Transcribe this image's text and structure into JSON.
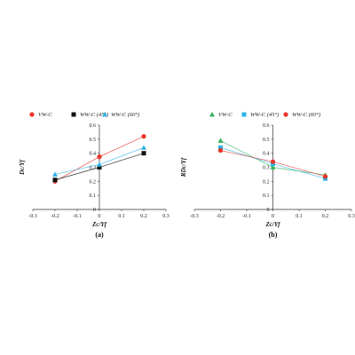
{
  "chart_data": [
    {
      "type": "line",
      "panel_label": "(a)",
      "xlabel": "Zc/Yf",
      "ylabel": "Dc/Yf",
      "xlim": [
        -0.3,
        0.3
      ],
      "ylim": [
        0,
        0.6
      ],
      "x_ticks": [
        "-0.3",
        "-0.2",
        "-0.1",
        "0",
        "0.1",
        "0.2",
        "0.3"
      ],
      "y_ticks": [
        "0",
        "0.1",
        "0.2",
        "0.3",
        "0.4",
        "0.5",
        "0.6"
      ],
      "grid": false,
      "legend_position": "top",
      "series": [
        {
          "name": "VW-C",
          "marker": "circle",
          "color": "#e8332a",
          "x": [
            -0.2,
            0,
            0.2
          ],
          "y": [
            0.2,
            0.375,
            0.52
          ]
        },
        {
          "name": "WW-C (45°)",
          "marker": "square",
          "color": "#111111",
          "x": [
            -0.2,
            0,
            0.2
          ],
          "y": [
            0.21,
            0.3,
            0.4
          ]
        },
        {
          "name": "WW-C (60°)",
          "marker": "triangle",
          "color": "#2fb3e6",
          "x": [
            -0.2,
            0,
            0.2
          ],
          "y": [
            0.25,
            0.32,
            0.44
          ]
        }
      ]
    },
    {
      "type": "line",
      "panel_label": "(b)",
      "xlabel": "Zc/Yf",
      "ylabel": "RDc/Yf",
      "xlim": [
        -0.3,
        0.3
      ],
      "ylim": [
        0,
        0.6
      ],
      "x_ticks": [
        "-0.3",
        "-0.2",
        "-0.1",
        "0",
        "0.1",
        "0.2",
        "0.3"
      ],
      "y_ticks": [
        "0",
        "0.1",
        "0.2",
        "0.3",
        "0.4",
        "0.5",
        "0.6"
      ],
      "grid": false,
      "legend_position": "top",
      "series": [
        {
          "name": "VW-C",
          "marker": "triangle",
          "color": "#2db35a",
          "x": [
            -0.2,
            0,
            0.2
          ],
          "y": [
            0.49,
            0.3,
            0.245
          ]
        },
        {
          "name": "WW-C (45°)",
          "marker": "square",
          "color": "#2fb3e6",
          "x": [
            -0.2,
            0,
            0.2
          ],
          "y": [
            0.44,
            0.325,
            0.22
          ]
        },
        {
          "name": "WW-C (60°)",
          "marker": "circle",
          "color": "#e8332a",
          "x": [
            -0.2,
            0,
            0.2
          ],
          "y": [
            0.42,
            0.34,
            0.235
          ]
        }
      ]
    }
  ]
}
